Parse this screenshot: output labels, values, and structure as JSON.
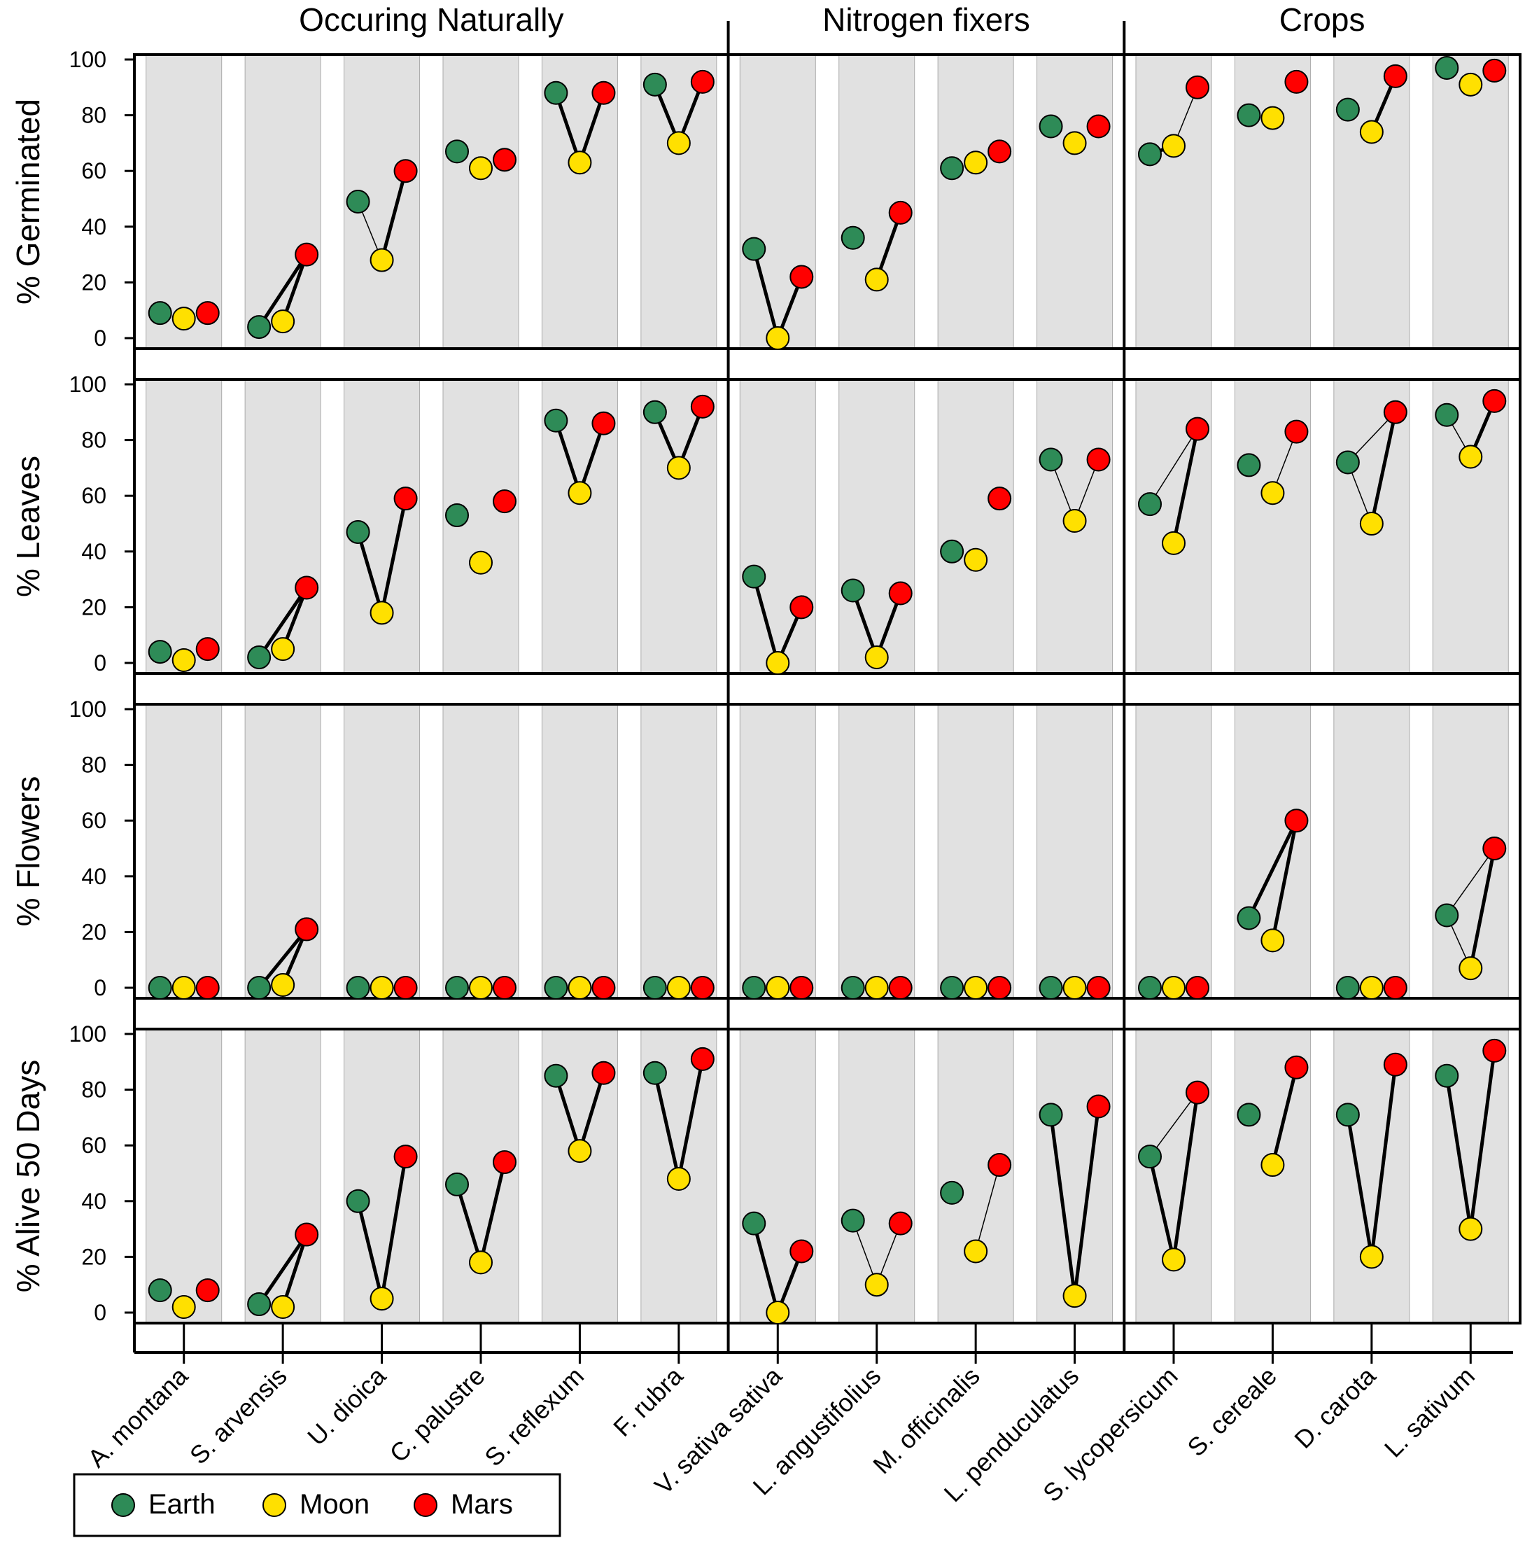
{
  "chart_data": {
    "type": "scatter",
    "groups": [
      "Occuring Naturally",
      "Nitrogen fixers",
      "Crops"
    ],
    "group_sizes": [
      6,
      4,
      4
    ],
    "species": [
      "A. montana",
      "S. arvensis",
      "U. dioica",
      "C. palustre",
      "S. reflexum",
      "F. rubra",
      "V. sativa sativa",
      "L. angustifolius",
      "M. officinalis",
      "L. penduculatus",
      "S. lycopersicum",
      "S. cereale",
      "D. carota",
      "L. sativum"
    ],
    "ylim": [
      0,
      100
    ],
    "yticks": [
      0,
      20,
      40,
      60,
      80,
      100
    ],
    "grid": false,
    "legend_position": "bottom-left",
    "series_order": [
      "Earth",
      "Moon",
      "Mars"
    ],
    "series_colors": {
      "Earth": "#2e8b57",
      "Moon": "#ffe000",
      "Mars": "#ff0000"
    },
    "panels": [
      {
        "ylabel": "%  Germinated",
        "values": {
          "Earth": [
            9,
            4,
            49,
            67,
            88,
            91,
            32,
            36,
            61,
            76,
            66,
            80,
            82,
            97
          ],
          "Moon": [
            7,
            6,
            28,
            61,
            63,
            70,
            0,
            21,
            63,
            70,
            69,
            79,
            74,
            91
          ],
          "Mars": [
            9,
            30,
            60,
            64,
            88,
            92,
            22,
            45,
            67,
            76,
            90,
            92,
            94,
            96
          ]
        },
        "links": {
          "earth_moon": [
            0,
            0,
            1,
            0,
            2,
            2,
            2,
            0,
            0,
            0,
            2,
            0,
            0,
            0
          ],
          "moon_mars": [
            0,
            2,
            2,
            0,
            2,
            2,
            2,
            2,
            0,
            0,
            1,
            0,
            2,
            0
          ],
          "earth_mars": [
            0,
            2,
            0,
            0,
            0,
            0,
            0,
            0,
            0,
            0,
            0,
            0,
            0,
            0
          ]
        }
      },
      {
        "ylabel": "%  Leaves",
        "values": {
          "Earth": [
            4,
            2,
            47,
            53,
            87,
            90,
            31,
            26,
            40,
            73,
            57,
            71,
            72,
            89
          ],
          "Moon": [
            1,
            5,
            18,
            36,
            61,
            70,
            0,
            2,
            37,
            51,
            43,
            61,
            50,
            74
          ],
          "Mars": [
            5,
            27,
            59,
            58,
            86,
            92,
            20,
            25,
            59,
            73,
            84,
            83,
            90,
            94
          ]
        },
        "links": {
          "earth_moon": [
            0,
            0,
            2,
            0,
            2,
            2,
            2,
            2,
            0,
            1,
            0,
            0,
            1,
            1
          ],
          "moon_mars": [
            0,
            2,
            2,
            0,
            2,
            2,
            2,
            2,
            0,
            1,
            2,
            1,
            2,
            2
          ],
          "earth_mars": [
            0,
            2,
            0,
            0,
            0,
            0,
            0,
            0,
            0,
            0,
            1,
            0,
            1,
            0
          ]
        }
      },
      {
        "ylabel": "%  Flowers",
        "values": {
          "Earth": [
            0,
            0,
            0,
            0,
            0,
            0,
            0,
            0,
            0,
            0,
            0,
            25,
            0,
            26
          ],
          "Moon": [
            0,
            1,
            0,
            0,
            0,
            0,
            0,
            0,
            0,
            0,
            0,
            17,
            0,
            7
          ],
          "Mars": [
            0,
            21,
            0,
            0,
            0,
            0,
            0,
            0,
            0,
            0,
            0,
            60,
            0,
            50
          ]
        },
        "links": {
          "earth_moon": [
            0,
            0,
            0,
            0,
            0,
            0,
            0,
            0,
            0,
            0,
            0,
            0,
            0,
            1
          ],
          "moon_mars": [
            0,
            2,
            0,
            0,
            0,
            0,
            0,
            0,
            0,
            0,
            0,
            2,
            0,
            2
          ],
          "earth_mars": [
            0,
            2,
            0,
            0,
            0,
            0,
            0,
            0,
            0,
            0,
            0,
            2,
            0,
            1
          ]
        }
      },
      {
        "ylabel": "%  Alive  50  Days",
        "values": {
          "Earth": [
            8,
            3,
            40,
            46,
            85,
            86,
            32,
            33,
            43,
            71,
            56,
            71,
            71,
            85
          ],
          "Moon": [
            2,
            2,
            5,
            18,
            58,
            48,
            0,
            10,
            22,
            6,
            19,
            53,
            20,
            30
          ],
          "Mars": [
            8,
            28,
            56,
            54,
            86,
            91,
            22,
            32,
            53,
            74,
            79,
            88,
            89,
            94
          ]
        },
        "links": {
          "earth_moon": [
            0,
            0,
            2,
            2,
            2,
            2,
            2,
            1,
            0,
            2,
            2,
            0,
            2,
            2
          ],
          "moon_mars": [
            0,
            2,
            2,
            2,
            2,
            2,
            2,
            1,
            1,
            2,
            2,
            2,
            2,
            2
          ],
          "earth_mars": [
            0,
            2,
            0,
            0,
            0,
            0,
            0,
            0,
            0,
            0,
            1,
            0,
            0,
            0
          ]
        }
      }
    ],
    "legend": [
      {
        "label": "Earth",
        "color": "#2e8b57"
      },
      {
        "label": "Moon",
        "color": "#ffe000"
      },
      {
        "label": "Mars",
        "color": "#ff0000"
      }
    ]
  }
}
